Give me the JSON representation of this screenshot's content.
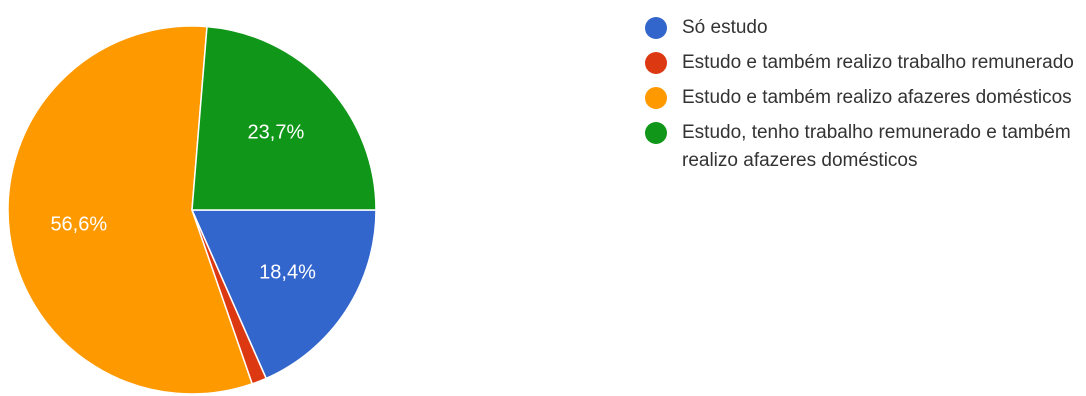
{
  "chart_data": {
    "type": "pie",
    "title": "",
    "legend_position": "right",
    "slices": [
      {
        "label": "Só estudo",
        "value": 18.4,
        "display": "18,4%",
        "color": "#3366cc"
      },
      {
        "label": "Estudo e também realizo trabalho remunerado",
        "value": 1.3,
        "display": "",
        "color": "#dc3912"
      },
      {
        "label": "Estudo e também realizo afazeres domésticos",
        "value": 56.6,
        "display": "56,6%",
        "color": "#ff9900"
      },
      {
        "label": "Estudo, tenho trabalho remunerado e também realizo afazeres domésticos",
        "value": 23.7,
        "display": "23,7%",
        "color": "#109618"
      }
    ]
  }
}
